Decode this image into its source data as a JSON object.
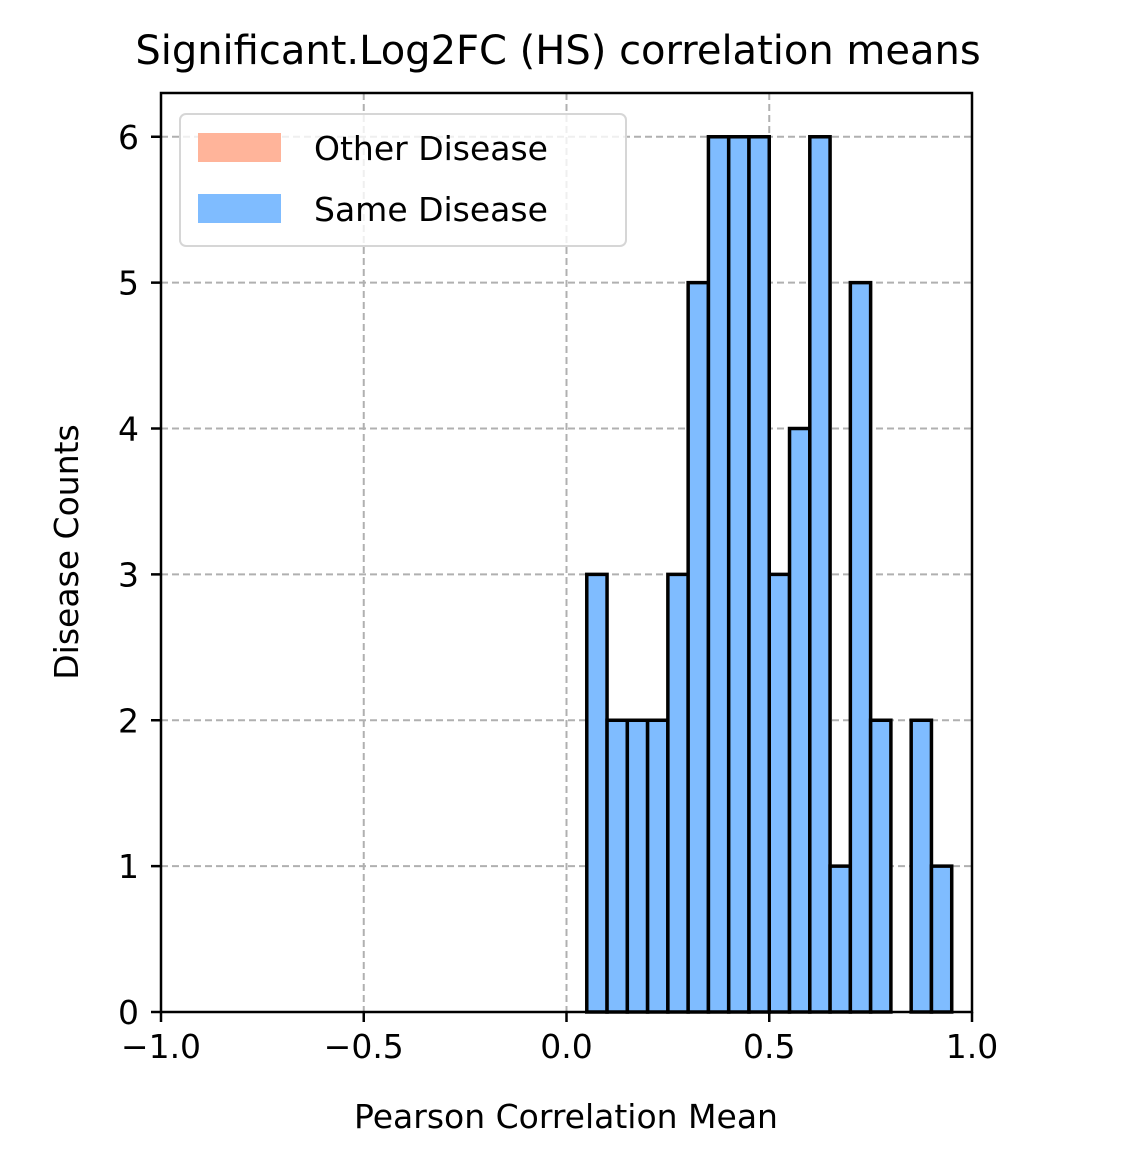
{
  "chart_data": {
    "type": "bar",
    "title": "Significant.Log2FC (HS) correlation means",
    "xlabel": "Pearson Correlation Mean",
    "ylabel": "Disease Counts",
    "xlim": [
      -1.0,
      1.0
    ],
    "ylim": [
      0,
      6.3
    ],
    "x_ticks": [
      "−1.0",
      "−0.5",
      "0.0",
      "0.5",
      "1.0"
    ],
    "x_tick_values": [
      -1.0,
      -0.5,
      0.0,
      0.5,
      1.0
    ],
    "y_ticks": [
      "0",
      "1",
      "2",
      "3",
      "4",
      "5",
      "6"
    ],
    "y_tick_values": [
      0,
      1,
      2,
      3,
      4,
      5,
      6
    ],
    "grid": true,
    "legend_position": "top-left",
    "bin_width": 0.05,
    "series": [
      {
        "name": "Other Disease",
        "color": "#ffb49a",
        "bins": []
      },
      {
        "name": "Same Disease",
        "color": "#7fbcff",
        "bins": [
          {
            "start": 0.05,
            "count": 3
          },
          {
            "start": 0.1,
            "count": 2
          },
          {
            "start": 0.15,
            "count": 2
          },
          {
            "start": 0.2,
            "count": 2
          },
          {
            "start": 0.25,
            "count": 3
          },
          {
            "start": 0.3,
            "count": 5
          },
          {
            "start": 0.35,
            "count": 6
          },
          {
            "start": 0.4,
            "count": 6
          },
          {
            "start": 0.45,
            "count": 6
          },
          {
            "start": 0.5,
            "count": 3
          },
          {
            "start": 0.55,
            "count": 4
          },
          {
            "start": 0.6,
            "count": 6
          },
          {
            "start": 0.65,
            "count": 1
          },
          {
            "start": 0.7,
            "count": 5
          },
          {
            "start": 0.75,
            "count": 2
          },
          {
            "start": 0.85,
            "count": 2
          },
          {
            "start": 0.9,
            "count": 1
          }
        ]
      }
    ],
    "edge_color": "#000000",
    "grid_color": "#b0b0b0"
  }
}
